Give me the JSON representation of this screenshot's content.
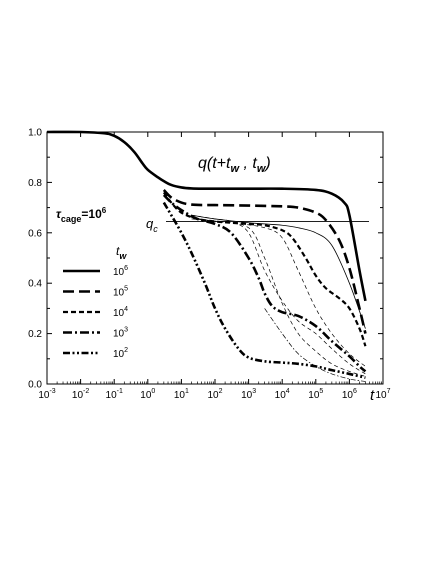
{
  "chart_data": {
    "type": "line",
    "title": "q(t+t_w , t_w)",
    "title_parts": {
      "main": "q(t+t",
      "sub1": "w",
      "mid": " , t",
      "sub2": "w",
      "end": ")"
    },
    "xlabel": "t",
    "ylabel": "",
    "x_scale": "log",
    "xlim": [
      0.001,
      10000000
    ],
    "ylim": [
      0.0,
      1.0
    ],
    "x_ticks": [
      {
        "mant": "10",
        "exp": "-3"
      },
      {
        "mant": "10",
        "exp": "-2"
      },
      {
        "mant": "10",
        "exp": "-1"
      },
      {
        "mant": "10",
        "exp": "0"
      },
      {
        "mant": "10",
        "exp": "1"
      },
      {
        "mant": "10",
        "exp": "2"
      },
      {
        "mant": "10",
        "exp": "3"
      },
      {
        "mant": "10",
        "exp": "4"
      },
      {
        "mant": "10",
        "exp": "5"
      },
      {
        "mant": "10",
        "exp": "6"
      },
      {
        "mant": "10",
        "exp": "7"
      }
    ],
    "y_ticks": [
      "0.0",
      "0.2",
      "0.4",
      "0.6",
      "0.8",
      "1.0"
    ],
    "annotation_tau": {
      "tau": "τ",
      "sub": "cage",
      "val": "=10",
      "exp": "6"
    },
    "qc_label": {
      "main": "q",
      "sub": "c"
    },
    "qc_value": 0.645,
    "legend_title": {
      "main": "t",
      "sub": "w"
    },
    "legend": [
      {
        "mant": "10",
        "exp": "6"
      },
      {
        "mant": "10",
        "exp": "5"
      },
      {
        "mant": "10",
        "exp": "4"
      },
      {
        "mant": "10",
        "exp": "3"
      },
      {
        "mant": "10",
        "exp": "2"
      }
    ],
    "series": [
      {
        "tw": 1000000,
        "style": "solid",
        "x": [
          0.001,
          0.01,
          0.05,
          0.1,
          0.2,
          0.4,
          0.7,
          1,
          2,
          3,
          5,
          10,
          20,
          50,
          100,
          1000,
          10000,
          100000,
          300000,
          700000,
          1000000,
          2000000,
          3000000
        ],
        "y": [
          1.0,
          1.0,
          0.995,
          0.985,
          0.96,
          0.92,
          0.875,
          0.85,
          0.82,
          0.805,
          0.79,
          0.78,
          0.776,
          0.775,
          0.775,
          0.775,
          0.775,
          0.77,
          0.755,
          0.72,
          0.67,
          0.45,
          0.33
        ]
      },
      {
        "tw": 100000,
        "style": "dash-long",
        "x": [
          3,
          5,
          10,
          20,
          50,
          100,
          1000,
          10000,
          30000,
          100000,
          200000,
          500000,
          1000000,
          2000000,
          3000000
        ],
        "y": [
          0.77,
          0.74,
          0.72,
          0.712,
          0.71,
          0.71,
          0.708,
          0.705,
          0.7,
          0.68,
          0.65,
          0.57,
          0.46,
          0.3,
          0.2
        ]
      },
      {
        "tw": 10000,
        "style": "dash-short",
        "x": [
          3,
          5,
          10,
          30,
          100,
          300,
          1000,
          3000,
          10000,
          20000,
          50000,
          100000,
          200000,
          500000,
          1000000,
          2000000,
          3000000
        ],
        "y": [
          0.76,
          0.72,
          0.68,
          0.655,
          0.645,
          0.64,
          0.635,
          0.63,
          0.61,
          0.58,
          0.5,
          0.43,
          0.38,
          0.34,
          0.3,
          0.22,
          0.15
        ]
      },
      {
        "tw": 1000,
        "style": "dash-dot",
        "x": [
          3,
          5,
          10,
          30,
          100,
          300,
          1000,
          2000,
          3000,
          5000,
          10000,
          30000,
          100000,
          300000,
          1000000,
          2000000,
          3000000
        ],
        "y": [
          0.75,
          0.72,
          0.69,
          0.655,
          0.635,
          0.6,
          0.5,
          0.42,
          0.36,
          0.31,
          0.285,
          0.27,
          0.23,
          0.17,
          0.11,
          0.07,
          0.05
        ]
      },
      {
        "tw": 100,
        "style": "dash-dot-dot",
        "x": [
          3,
          5,
          10,
          20,
          50,
          100,
          200,
          500,
          1000,
          3000,
          10000,
          30000,
          100000,
          300000,
          1000000,
          3000000
        ],
        "y": [
          0.72,
          0.67,
          0.6,
          0.52,
          0.4,
          0.3,
          0.22,
          0.14,
          0.105,
          0.09,
          0.085,
          0.08,
          0.07,
          0.055,
          0.04,
          0.025
        ]
      },
      {
        "tw": "thin-1",
        "style": "thin-solid",
        "x": [
          20,
          100,
          1000,
          10000,
          30000,
          100000,
          300000,
          1000000,
          3000000
        ],
        "y": [
          0.67,
          0.655,
          0.64,
          0.63,
          0.62,
          0.6,
          0.55,
          0.4,
          0.22
        ]
      },
      {
        "tw": "thin-2",
        "style": "thin-dash",
        "x": [
          20,
          100,
          300,
          1000,
          3000,
          10000,
          30000,
          100000,
          300000,
          1000000,
          3000000
        ],
        "y": [
          0.67,
          0.655,
          0.645,
          0.6,
          0.45,
          0.33,
          0.25,
          0.2,
          0.14,
          0.08,
          0.04
        ]
      },
      {
        "tw": "thin-3",
        "style": "thin-dash",
        "x": [
          20,
          100,
          1000,
          3000,
          10000,
          30000,
          100000,
          300000,
          1000000,
          3000000
        ],
        "y": [
          0.66,
          0.645,
          0.62,
          0.5,
          0.32,
          0.2,
          0.13,
          0.08,
          0.05,
          0.03
        ]
      },
      {
        "tw": "thin-4",
        "style": "thin-dash",
        "x": [
          20,
          300,
          3000,
          10000,
          30000,
          100000,
          300000,
          1000000,
          3000000
        ],
        "y": [
          0.655,
          0.64,
          0.62,
          0.58,
          0.45,
          0.3,
          0.2,
          0.12,
          0.07
        ]
      },
      {
        "tw": "thin-5",
        "style": "thin-dash-dot",
        "x": [
          3000,
          10000,
          30000,
          100000,
          300000,
          1000000,
          3000000
        ],
        "y": [
          0.3,
          0.2,
          0.12,
          0.07,
          0.04,
          0.02,
          0.01
        ]
      }
    ]
  }
}
